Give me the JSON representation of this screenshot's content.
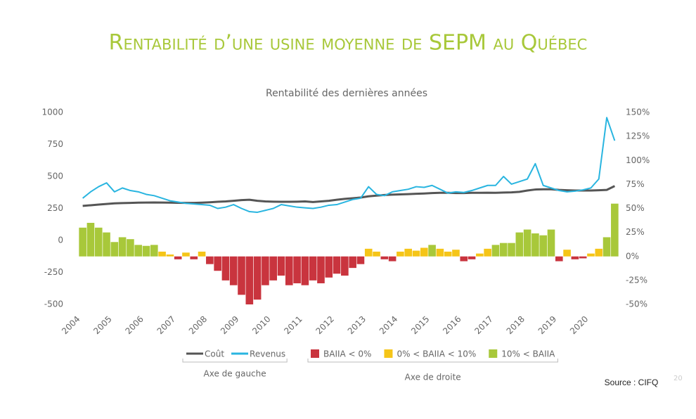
{
  "chart_data": {
    "type": "combo",
    "title": "Rentabilité d’une usine moyenne de SEPM au Québec",
    "subtitle": "Rentabilité des dernières années",
    "source": "Source : CIFQ",
    "page_number": "20",
    "legend_groups": [
      "Axe de gauche",
      "Axe de droite"
    ],
    "categories": [
      "2004",
      null,
      null,
      null,
      "2005",
      null,
      null,
      null,
      "2006",
      null,
      null,
      null,
      "2007",
      null,
      null,
      null,
      "2008",
      null,
      null,
      null,
      "2009",
      null,
      null,
      null,
      "2010",
      null,
      null,
      null,
      "2011",
      null,
      null,
      null,
      "2012",
      null,
      null,
      null,
      "2013",
      null,
      null,
      null,
      "2014",
      null,
      null,
      null,
      "2015",
      null,
      null,
      null,
      "2016",
      null,
      null,
      null,
      "2017",
      null,
      null,
      null,
      "2018",
      null,
      null,
      null,
      "2019",
      null,
      null,
      null,
      "2020",
      null,
      null,
      null
    ],
    "ylim": [
      -500,
      1000
    ],
    "yticks": [
      -500,
      -250,
      0,
      250,
      500,
      750,
      1000
    ],
    "y2lim": [
      -50,
      150
    ],
    "y2ticks": [
      {
        "value": -50,
        "label": "-50%"
      },
      {
        "value": -25,
        "label": "-25%"
      },
      {
        "value": 0,
        "label": "0%"
      },
      {
        "value": 25,
        "label": "25%"
      },
      {
        "value": 50,
        "label": "50%"
      },
      {
        "value": 75,
        "label": "75%"
      },
      {
        "value": 100,
        "label": "100%"
      },
      {
        "value": 125,
        "label": "125%"
      },
      {
        "value": 150,
        "label": "150%"
      }
    ],
    "grid": false,
    "series": [
      {
        "name": "Coût",
        "type": "line",
        "color": "#555555",
        "values": [
          270,
          275,
          280,
          285,
          290,
          292,
          293,
          295,
          296,
          297,
          296,
          295,
          294,
          293,
          293,
          295,
          298,
          302,
          305,
          310,
          315,
          318,
          310,
          305,
          303,
          302,
          302,
          303,
          305,
          300,
          305,
          310,
          318,
          325,
          330,
          335,
          345,
          350,
          355,
          358,
          360,
          362,
          365,
          367,
          370,
          372,
          372,
          370,
          370,
          372,
          372,
          373,
          372,
          374,
          376,
          380,
          390,
          398,
          400,
          400,
          395,
          392,
          390,
          390,
          390,
          392,
          395,
          425
        ]
      },
      {
        "name": "Revenus",
        "type": "line",
        "color": "#29b5e0",
        "values": [
          330,
          380,
          420,
          450,
          380,
          410,
          390,
          380,
          360,
          350,
          330,
          310,
          300,
          290,
          285,
          280,
          275,
          250,
          260,
          280,
          250,
          225,
          220,
          235,
          250,
          280,
          270,
          260,
          255,
          250,
          260,
          275,
          280,
          300,
          320,
          330,
          420,
          360,
          350,
          380,
          390,
          400,
          420,
          415,
          430,
          400,
          370,
          380,
          375,
          390,
          410,
          430,
          430,
          500,
          440,
          460,
          480,
          600,
          430,
          410,
          390,
          380,
          385,
          395,
          410,
          480,
          960,
          780
        ]
      },
      {
        "name": "BAIIA < 0%",
        "type": "bar",
        "axis": "y2",
        "color": "#c9343e",
        "values": [
          null,
          null,
          null,
          null,
          null,
          null,
          null,
          null,
          null,
          null,
          null,
          null,
          -3,
          null,
          -3,
          null,
          -8,
          -15,
          -25,
          -30,
          -40,
          -50,
          -45,
          -30,
          -25,
          -20,
          -30,
          -28,
          -30,
          -25,
          -28,
          -22,
          -18,
          -20,
          -12,
          -8,
          null,
          null,
          -3,
          -5,
          null,
          null,
          null,
          null,
          null,
          null,
          null,
          null,
          -5,
          -3,
          null,
          null,
          null,
          null,
          null,
          null,
          null,
          null,
          null,
          null,
          -5,
          null,
          -3,
          -2,
          null,
          null,
          null,
          null
        ]
      },
      {
        "name": "0% < BAIIA < 10%",
        "type": "bar",
        "axis": "y2",
        "color": "#f5c518",
        "values": [
          null,
          null,
          null,
          null,
          null,
          null,
          null,
          null,
          null,
          null,
          5,
          2,
          null,
          4,
          null,
          5,
          null,
          null,
          null,
          null,
          null,
          null,
          null,
          null,
          null,
          null,
          null,
          null,
          null,
          null,
          null,
          null,
          null,
          null,
          null,
          null,
          8,
          5,
          null,
          null,
          5,
          8,
          6,
          9,
          null,
          8,
          5,
          7,
          null,
          null,
          3,
          8,
          null,
          null,
          null,
          null,
          null,
          null,
          null,
          null,
          null,
          7,
          null,
          null,
          3,
          8,
          null,
          null
        ]
      },
      {
        "name": "10% < BAIIA",
        "type": "bar",
        "axis": "y2",
        "color": "#a8c83a",
        "values": [
          30,
          35,
          30,
          25,
          15,
          20,
          18,
          12,
          11,
          12,
          null,
          null,
          null,
          null,
          null,
          null,
          null,
          null,
          null,
          null,
          null,
          null,
          null,
          null,
          null,
          null,
          null,
          null,
          null,
          null,
          null,
          null,
          null,
          null,
          null,
          null,
          null,
          null,
          null,
          null,
          null,
          null,
          null,
          null,
          12,
          null,
          null,
          null,
          null,
          null,
          null,
          null,
          12,
          14,
          14,
          25,
          28,
          24,
          22,
          28,
          null,
          null,
          null,
          null,
          null,
          null,
          20,
          55
        ]
      }
    ]
  }
}
